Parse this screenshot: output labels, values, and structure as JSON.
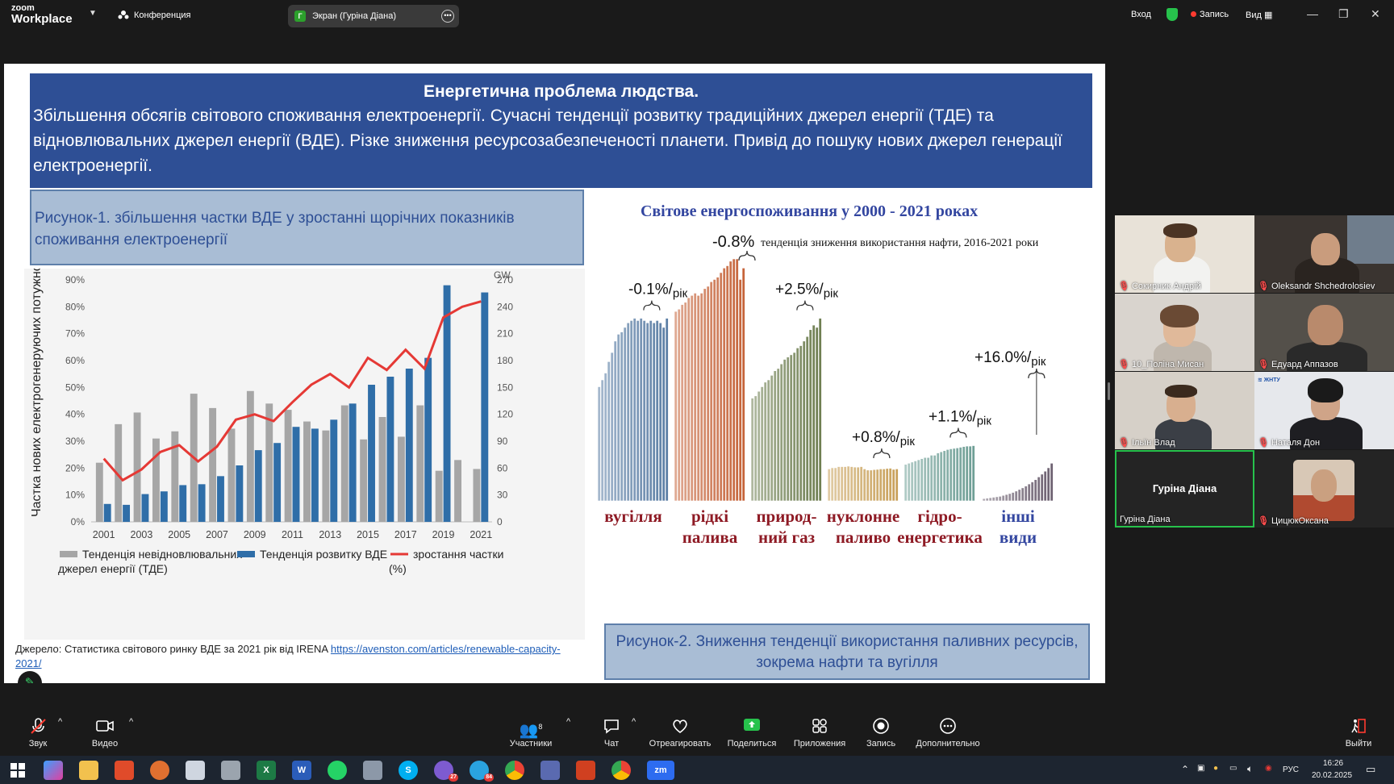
{
  "app": {
    "logo_line1": "zoom",
    "logo_line2": "Workplace",
    "meeting_label": "Конференция",
    "screen_tab": "Экран (Гуріна Діана)",
    "screen_tab_initial": "Г",
    "enter": "Вход",
    "recording": "Запись",
    "view": "Вид"
  },
  "slide": {
    "title": "Енергетична проблема людства.",
    "subtitle": "Збільшення обсягів світового споживання електроенергії. Сучасні тенденції розвитку традиційних джерел енергії (ТДЕ) та відновлювальних джерел енергії (ВДЕ). Різке зниження ресурсозабезпеченості планети. Привід до пошуку нових джерел генерації електроенергії.",
    "fig1_caption": "Рисунок-1. збільшення частки ВДЕ у зростанні щорічних показників споживання електроенергії",
    "fig2_caption": "Рисунок-2. Зниження тенденції використання паливних ресурсів, зокрема нафти та вугілля",
    "source_text": "Джерело: Статистика світового ринку ВДЕ за 2021 рік від IRENA ",
    "source_link": "https://avenston.com/articles/renewable-capacity-2021/"
  },
  "chart_data": [
    {
      "type": "bar",
      "title": "",
      "ylabel": "Частка нових електрогенеруючих потужностей",
      "y2label": "GW",
      "ylim": [
        0,
        90
      ],
      "y2lim": [
        0,
        270
      ],
      "yticks": [
        "0%",
        "10%",
        "20%",
        "30%",
        "40%",
        "50%",
        "60%",
        "70%",
        "80%",
        "90%"
      ],
      "y2ticks": [
        "0",
        "30",
        "60",
        "90",
        "120",
        "150",
        "180",
        "210",
        "240",
        "270"
      ],
      "x": [
        2001,
        2002,
        2003,
        2004,
        2005,
        2006,
        2007,
        2008,
        2009,
        2010,
        2011,
        2012,
        2013,
        2014,
        2015,
        2016,
        2017,
        2018,
        2019,
        2020,
        2021
      ],
      "x_tick_labels": [
        "2001",
        "2003",
        "2005",
        "2007",
        "2009",
        "2011",
        "2013",
        "2015",
        "2017",
        "2019",
        "2021"
      ],
      "series": [
        {
          "name": "Тенденція невідновлювальних джерел енергії (ТДЕ)",
          "kind": "bar",
          "axis": "y2",
          "color": "#a6a6a6",
          "values": [
            66,
            109,
            122,
            93,
            101,
            143,
            127,
            104,
            146,
            132,
            125,
            112,
            102,
            130,
            92,
            117,
            95,
            130,
            57,
            69,
            59
          ]
        },
        {
          "name": "Тенденція розвитку ВДЕ",
          "kind": "bar",
          "axis": "y2",
          "color": "#2f6ea8",
          "values": [
            20,
            19,
            31,
            34,
            41,
            42,
            51,
            63,
            80,
            88,
            106,
            104,
            114,
            132,
            153,
            162,
            171,
            183,
            264,
            0,
            256
          ]
        },
        {
          "name": "зростання частки (%)",
          "kind": "line",
          "axis": "y",
          "color": "#e53935",
          "values": [
            23.5,
            15.5,
            19.5,
            26,
            28.5,
            22.5,
            28,
            38,
            40,
            37.5,
            44.5,
            51,
            55,
            50,
            61,
            56.5,
            64,
            57,
            76,
            80,
            82
          ]
        }
      ],
      "legend": [
        "Тенденція невідновлювальних джерел енергії (ТДЕ)",
        "Тенденція розвитку ВДЕ",
        "зростання частки (%)"
      ],
      "legend_position": "bottom"
    },
    {
      "type": "bar",
      "title": "Світове енергоспоживання у 2000 - 2021 роках",
      "top_annotation": "-0.8%",
      "top_annotation_note": "тенденція зниження використання нафти, 2016-2021 роки",
      "groups": [
        {
          "name": "вугілля",
          "label_line1": "вугілля",
          "label_line2": "",
          "color": "#5c7fa6",
          "change": "-0.1%/рік",
          "values": [
            0.5,
            0.53,
            0.56,
            0.61,
            0.65,
            0.7,
            0.73,
            0.74,
            0.76,
            0.78,
            0.79,
            0.8,
            0.79,
            0.8,
            0.79,
            0.78,
            0.79,
            0.78,
            0.79,
            0.78,
            0.76,
            0.8
          ]
        },
        {
          "name": "рідкі палива",
          "label_line1": "рідкі",
          "label_line2": "палива",
          "color": "#c6643a",
          "change": "-0.8%",
          "values": [
            0.83,
            0.84,
            0.86,
            0.87,
            0.89,
            0.9,
            0.91,
            0.9,
            0.91,
            0.93,
            0.94,
            0.96,
            0.97,
            0.98,
            1.0,
            1.02,
            1.03,
            1.05,
            1.06,
            1.06,
            0.97,
            1.02
          ]
        },
        {
          "name": "природний газ",
          "label_line1": "природ-",
          "label_line2": "ний газ",
          "color": "#6f7f52",
          "change": "+2.5%/рік",
          "values": [
            0.45,
            0.46,
            0.48,
            0.5,
            0.52,
            0.53,
            0.55,
            0.57,
            0.58,
            0.6,
            0.62,
            0.63,
            0.64,
            0.65,
            0.67,
            0.68,
            0.7,
            0.72,
            0.75,
            0.77,
            0.76,
            0.8
          ]
        },
        {
          "name": "нуклонне паливо",
          "label_line1": "нуклонне",
          "label_line2": "паливо",
          "color": "#c9a15a",
          "change": "+0.8%/рік",
          "values": [
            0.14,
            0.145,
            0.145,
            0.15,
            0.15,
            0.15,
            0.152,
            0.15,
            0.148,
            0.148,
            0.15,
            0.14,
            0.135,
            0.135,
            0.137,
            0.138,
            0.14,
            0.14,
            0.142,
            0.143,
            0.138,
            0.14
          ]
        },
        {
          "name": "гідроенергетика",
          "label_line1": "гідро-",
          "label_line2": "енергетика",
          "color": "#6f9f96",
          "change": "+1.1%/рік",
          "values": [
            0.16,
            0.165,
            0.17,
            0.175,
            0.18,
            0.185,
            0.19,
            0.19,
            0.2,
            0.2,
            0.21,
            0.215,
            0.22,
            0.225,
            0.228,
            0.23,
            0.232,
            0.235,
            0.238,
            0.24,
            0.24,
            0.242
          ]
        },
        {
          "name": "інші види",
          "label_line1": "інші",
          "label_line2": "види",
          "color": "#6e6272",
          "change": "+16.0%/рік",
          "values": [
            0.01,
            0.012,
            0.014,
            0.016,
            0.018,
            0.02,
            0.024,
            0.028,
            0.032,
            0.037,
            0.043,
            0.05,
            0.057,
            0.065,
            0.074,
            0.083,
            0.093,
            0.105,
            0.117,
            0.13,
            0.145,
            0.165
          ]
        }
      ]
    }
  ],
  "gallery": [
    {
      "name": "Сокирник Андрій",
      "muted": true
    },
    {
      "name": "Oleksandr Shchedrolosiev",
      "muted": true
    },
    {
      "name": "10_Поліна Мисан",
      "muted": true
    },
    {
      "name": "Едуард Аппазов",
      "muted": true
    },
    {
      "name": "Ільїн Влад",
      "muted": true
    },
    {
      "name": "Наталя Дон",
      "muted": true
    },
    {
      "name": "Гуріна Діана",
      "muted": false,
      "active": true
    },
    {
      "name": "ЦицюкОксана",
      "muted": true
    }
  ],
  "toolbar": {
    "audio": "Звук",
    "video": "Видео",
    "participants": "Участники",
    "participants_count": "8",
    "chat": "Чат",
    "react": "Отреагировать",
    "share": "Поделиться",
    "apps": "Приложения",
    "record": "Запись",
    "more": "Дополнительно",
    "leave": "Выйти"
  },
  "taskbar": {
    "lang": "РУС",
    "time": "16:26",
    "date": "20.02.2025",
    "badge_viber": "27",
    "badge_telegram": "84",
    "zoom_app": "zm"
  }
}
